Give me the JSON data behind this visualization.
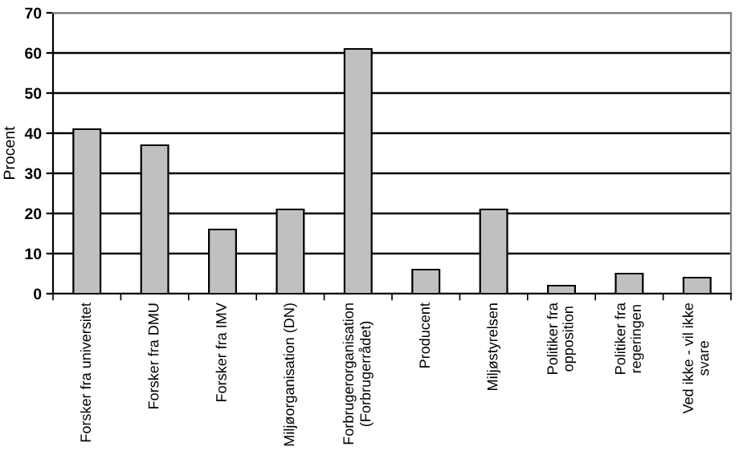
{
  "chart_data": {
    "type": "bar",
    "ylabel": "Procent",
    "categories": [
      "Forsker fra universitet",
      "Forsker fra DMU",
      "Forsker fra IMV",
      "Miljøorganisation (DN)",
      "Forbrugerorganisation\n(Forbrugerrådet)",
      "Producent",
      "Miljøstyrelsen",
      "Politiker fra\nopposition",
      "Politiker fra\nregeringen",
      "Ved ikke - vil ikke\nsvare"
    ],
    "values": [
      41,
      37,
      16,
      21,
      61,
      6,
      21,
      2,
      5,
      4
    ],
    "color": "#c0c0c0",
    "ylim": [
      0,
      70
    ],
    "yticks": [
      0,
      10,
      20,
      30,
      40,
      50,
      60,
      70
    ],
    "grid": "y",
    "legend": false
  }
}
